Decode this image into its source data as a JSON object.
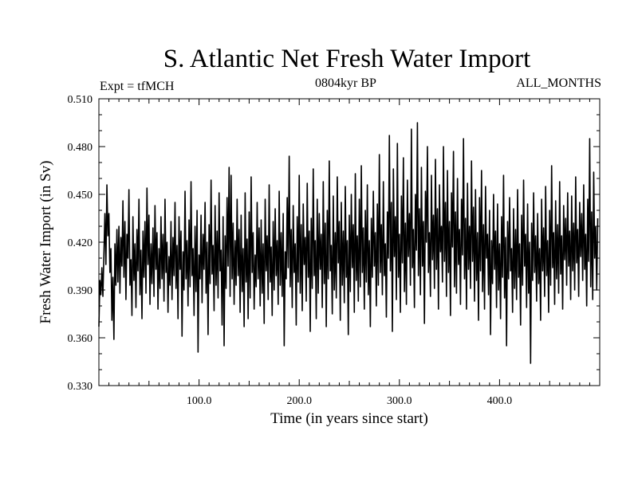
{
  "chart_data": {
    "type": "line",
    "title": "S. Atlantic Net Fresh Water Import",
    "subtitle": "0804kyr BP",
    "left_annotation": "Expt = tfMCH",
    "right_annotation": "ALL_MONTHS",
    "xlabel": "Time (in years since start)",
    "ylabel": "Fresh Water Import (in Sv)",
    "xlim": [
      0,
      500
    ],
    "ylim": [
      0.33,
      0.51
    ],
    "x_major_ticks": [
      100,
      200,
      300,
      400
    ],
    "x_tick_labels": [
      "100.0",
      "200.0",
      "300.0",
      "400.0"
    ],
    "y_major_ticks": [
      0.33,
      0.36,
      0.39,
      0.42,
      0.45,
      0.48,
      0.51
    ],
    "y_tick_labels": [
      "0.330",
      "0.360",
      "0.390",
      "0.420",
      "0.450",
      "0.480",
      "0.510"
    ],
    "series": [
      {
        "name": "fresh water import",
        "x_start": 0,
        "x_step": 1,
        "values": [
          0.367,
          0.396,
          0.387,
          0.404,
          0.386,
          0.412,
          0.438,
          0.406,
          0.456,
          0.424,
          0.438,
          0.401,
          0.416,
          0.371,
          0.398,
          0.359,
          0.419,
          0.393,
          0.428,
          0.395,
          0.43,
          0.388,
          0.423,
          0.405,
          0.446,
          0.398,
          0.433,
          0.384,
          0.425,
          0.41,
          0.453,
          0.393,
          0.409,
          0.374,
          0.436,
          0.396,
          0.419,
          0.379,
          0.428,
          0.402,
          0.447,
          0.387,
          0.415,
          0.372,
          0.427,
          0.398,
          0.433,
          0.388,
          0.454,
          0.406,
          0.437,
          0.381,
          0.419,
          0.394,
          0.429,
          0.386,
          0.443,
          0.403,
          0.426,
          0.378,
          0.416,
          0.391,
          0.436,
          0.397,
          0.425,
          0.383,
          0.447,
          0.401,
          0.42,
          0.376,
          0.411,
          0.393,
          0.433,
          0.384,
          0.423,
          0.399,
          0.445,
          0.391,
          0.418,
          0.372,
          0.436,
          0.403,
          0.427,
          0.361,
          0.414,
          0.39,
          0.452,
          0.397,
          0.421,
          0.38,
          0.434,
          0.392,
          0.458,
          0.399,
          0.416,
          0.374,
          0.43,
          0.389,
          0.44,
          0.351,
          0.412,
          0.397,
          0.437,
          0.382,
          0.425,
          0.403,
          0.445,
          0.388,
          0.42,
          0.362,
          0.431,
          0.394,
          0.459,
          0.4,
          0.418,
          0.377,
          0.443,
          0.393,
          0.427,
          0.385,
          0.451,
          0.402,
          0.415,
          0.368,
          0.436,
          0.355,
          0.424,
          0.391,
          0.448,
          0.405,
          0.467,
          0.386,
          0.462,
          0.397,
          0.432,
          0.381,
          0.421,
          0.393,
          0.447,
          0.399,
          0.428,
          0.376,
          0.437,
          0.389,
          0.416,
          0.367,
          0.451,
          0.395,
          0.422,
          0.372,
          0.439,
          0.385,
          0.461,
          0.401,
          0.426,
          0.378,
          0.412,
          0.392,
          0.445,
          0.397,
          0.429,
          0.38,
          0.434,
          0.388,
          0.419,
          0.369,
          0.447,
          0.402,
          0.424,
          0.384,
          0.456,
          0.395,
          0.417,
          0.374,
          0.433,
          0.39,
          0.441,
          0.399,
          0.421,
          0.381,
          0.452,
          0.393,
          0.426,
          0.386,
          0.438,
          0.355,
          0.414,
          0.397,
          0.448,
          0.404,
          0.474,
          0.392,
          0.428,
          0.379,
          0.443,
          0.401,
          0.419,
          0.368,
          0.436,
          0.395,
          0.462,
          0.388,
          0.431,
          0.377,
          0.444,
          0.406,
          0.423,
          0.383,
          0.457,
          0.398,
          0.427,
          0.364,
          0.435,
          0.391,
          0.466,
          0.399,
          0.421,
          0.372,
          0.447,
          0.388,
          0.438,
          0.403,
          0.425,
          0.379,
          0.458,
          0.394,
          0.432,
          0.367,
          0.44,
          0.397,
          0.471,
          0.402,
          0.418,
          0.375,
          0.449,
          0.39,
          0.426,
          0.385,
          0.461,
          0.407,
          0.433,
          0.371,
          0.445,
          0.393,
          0.427,
          0.382,
          0.455,
          0.398,
          0.421,
          0.362,
          0.437,
          0.389,
          0.45,
          0.404,
          0.431,
          0.376,
          0.463,
          0.396,
          0.424,
          0.383,
          0.447,
          0.392,
          0.468,
          0.401,
          0.429,
          0.378,
          0.44,
          0.395,
          0.456,
          0.387,
          0.421,
          0.367,
          0.435,
          0.398,
          0.452,
          0.405,
          0.426,
          0.38,
          0.444,
          0.393,
          0.475,
          0.401,
          0.431,
          0.387,
          0.458,
          0.399,
          0.419,
          0.373,
          0.439,
          0.41,
          0.487,
          0.402,
          0.445,
          0.364,
          0.466,
          0.411,
          0.436,
          0.384,
          0.482,
          0.398,
          0.425,
          0.376,
          0.449,
          0.407,
          0.473,
          0.389,
          0.432,
          0.381,
          0.459,
          0.411,
          0.438,
          0.393,
          0.491,
          0.404,
          0.428,
          0.379,
          0.45,
          0.415,
          0.495,
          0.399,
          0.441,
          0.387,
          0.467,
          0.405,
          0.433,
          0.369,
          0.452,
          0.42,
          0.48,
          0.401,
          0.426,
          0.386,
          0.462,
          0.409,
          0.437,
          0.391,
          0.472,
          0.403,
          0.441,
          0.378,
          0.456,
          0.414,
          0.43,
          0.395,
          0.48,
          0.408,
          0.445,
          0.386,
          0.465,
          0.401,
          0.433,
          0.374,
          0.451,
          0.417,
          0.477,
          0.392,
          0.439,
          0.388,
          0.46,
          0.406,
          0.428,
          0.381,
          0.447,
          0.412,
          0.485,
          0.397,
          0.435,
          0.378,
          0.457,
          0.403,
          0.43,
          0.391,
          0.471,
          0.408,
          0.442,
          0.383,
          0.453,
          0.396,
          0.426,
          0.371,
          0.448,
          0.402,
          0.465,
          0.389,
          0.431,
          0.378,
          0.455,
          0.41,
          0.425,
          0.387,
          0.44,
          0.362,
          0.421,
          0.394,
          0.45,
          0.403,
          0.427,
          0.379,
          0.444,
          0.39,
          0.419,
          0.372,
          0.436,
          0.398,
          0.462,
          0.385,
          0.423,
          0.355,
          0.433,
          0.397,
          0.448,
          0.402,
          0.416,
          0.376,
          0.441,
          0.391,
          0.428,
          0.384,
          0.453,
          0.398,
          0.419,
          0.368,
          0.437,
          0.393,
          0.459,
          0.405,
          0.425,
          0.379,
          0.444,
          0.388,
          0.42,
          0.344,
          0.432,
          0.396,
          0.451,
          0.401,
          0.424,
          0.383,
          0.438,
          0.394,
          0.416,
          0.371,
          0.447,
          0.402,
          0.429,
          0.386,
          0.455,
          0.399,
          0.421,
          0.376,
          0.44,
          0.393,
          0.468,
          0.404,
          0.426,
          0.381,
          0.446,
          0.397,
          0.431,
          0.388,
          0.458,
          0.4,
          0.424,
          0.378,
          0.443,
          0.409,
          0.435,
          0.393,
          0.451,
          0.405,
          0.427,
          0.384,
          0.449,
          0.402,
          0.432,
          0.39,
          0.461,
          0.407,
          0.428,
          0.386,
          0.445,
          0.411,
          0.438,
          0.396,
          0.456,
          0.403,
          0.425,
          0.38,
          0.447,
          0.408,
          0.485,
          0.392,
          0.439,
          0.384,
          0.464,
          0.41,
          0.43,
          0.39,
          0.435
        ]
      }
    ]
  }
}
